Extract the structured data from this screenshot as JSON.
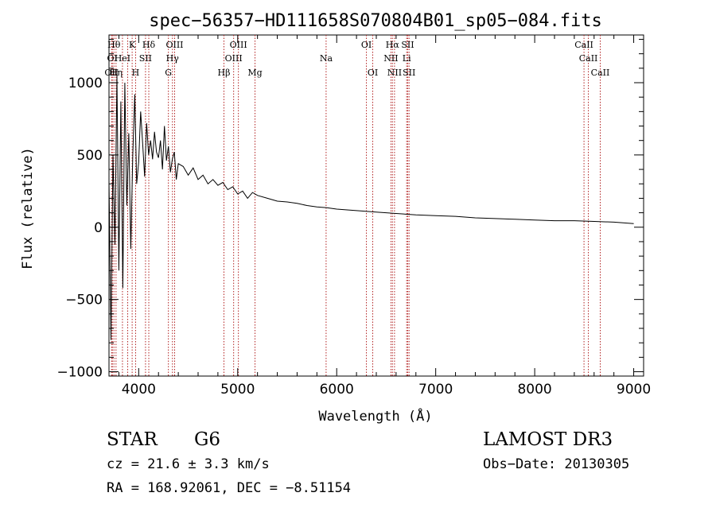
{
  "chart_data": {
    "type": "line",
    "title": "spec−56357−HD111658S070804B01_sp05−084.fits",
    "xlabel": "Wavelength (Å)",
    "ylabel": "Flux (relative)",
    "xlim": [
      3700,
      9100
    ],
    "ylim": [
      -1030,
      1330
    ],
    "xticks": [
      4000,
      5000,
      6000,
      7000,
      8000,
      9000
    ],
    "xtick_labels": [
      "4000",
      "5000",
      "6000",
      "7000",
      "8000",
      "9000"
    ],
    "yticks": [
      -1000,
      -500,
      0,
      500,
      1000
    ],
    "ytick_labels": [
      "−1000",
      "−500",
      "0",
      "500",
      "1000"
    ],
    "grid": false,
    "series": [
      {
        "name": "flux",
        "x": [
          3700,
          3720,
          3740,
          3760,
          3780,
          3800,
          3820,
          3840,
          3860,
          3880,
          3900,
          3920,
          3940,
          3960,
          3980,
          4000,
          4020,
          4040,
          4060,
          4080,
          4100,
          4120,
          4140,
          4160,
          4180,
          4200,
          4220,
          4240,
          4260,
          4280,
          4300,
          4320,
          4340,
          4360,
          4380,
          4400,
          4450,
          4500,
          4550,
          4600,
          4650,
          4700,
          4750,
          4800,
          4850,
          4900,
          4950,
          5000,
          5050,
          5100,
          5150,
          5200,
          5300,
          5400,
          5500,
          5600,
          5700,
          5800,
          5900,
          6000,
          6200,
          6400,
          6600,
          6800,
          7000,
          7200,
          7400,
          7600,
          7800,
          8000,
          8200,
          8400,
          8600,
          8800,
          9000
        ],
        "y": [
          320,
          -780,
          500,
          -120,
          1050,
          -300,
          870,
          -420,
          1000,
          150,
          650,
          -150,
          500,
          920,
          300,
          450,
          800,
          580,
          350,
          720,
          500,
          600,
          470,
          660,
          520,
          480,
          600,
          400,
          700,
          460,
          560,
          380,
          470,
          520,
          330,
          440,
          420,
          360,
          410,
          330,
          360,
          300,
          330,
          290,
          310,
          260,
          280,
          230,
          250,
          200,
          240,
          220,
          200,
          180,
          175,
          165,
          150,
          140,
          135,
          125,
          115,
          105,
          95,
          85,
          80,
          75,
          65,
          60,
          55,
          50,
          45,
          45,
          40,
          35,
          25
        ]
      }
    ],
    "lines": [
      {
        "wavelength": 3726,
        "label": "OII",
        "row": 3
      },
      {
        "wavelength": 3734,
        "label": "OI",
        "row": 2
      },
      {
        "wavelength": 3750,
        "label": "Hθ",
        "row": 1
      },
      {
        "wavelength": 3771,
        "label": "Hη",
        "row": 3
      },
      {
        "wavelength": 3836,
        "label": "HeI",
        "row": 2
      },
      {
        "wavelength": 3889,
        "label": "",
        "row": 0
      },
      {
        "wavelength": 3934,
        "label": "K",
        "row": 1
      },
      {
        "wavelength": 3969,
        "label": "H",
        "row": 3
      },
      {
        "wavelength": 4069,
        "label": "SII",
        "row": 2
      },
      {
        "wavelength": 4102,
        "label": "Hδ",
        "row": 1
      },
      {
        "wavelength": 4300,
        "label": "G",
        "row": 3
      },
      {
        "wavelength": 4341,
        "label": "Hγ",
        "row": 2
      },
      {
        "wavelength": 4363,
        "label": "OIII",
        "row": 1
      },
      {
        "wavelength": 4861,
        "label": "Hβ",
        "row": 3
      },
      {
        "wavelength": 4959,
        "label": "OIII",
        "row": 2
      },
      {
        "wavelength": 5007,
        "label": "OIII",
        "row": 1
      },
      {
        "wavelength": 5175,
        "label": "Mg",
        "row": 3
      },
      {
        "wavelength": 5893,
        "label": "Na",
        "row": 2
      },
      {
        "wavelength": 6300,
        "label": "OI",
        "row": 1
      },
      {
        "wavelength": 6364,
        "label": "OI",
        "row": 3
      },
      {
        "wavelength": 6548,
        "label": "NII",
        "row": 2
      },
      {
        "wavelength": 6563,
        "label": "Hα",
        "row": 1
      },
      {
        "wavelength": 6584,
        "label": "NII",
        "row": 3
      },
      {
        "wavelength": 6707,
        "label": "Li",
        "row": 2
      },
      {
        "wavelength": 6717,
        "label": "SII",
        "row": 1
      },
      {
        "wavelength": 6731,
        "label": "SII",
        "row": 3
      },
      {
        "wavelength": 8498,
        "label": "CaII",
        "row": 1
      },
      {
        "wavelength": 8542,
        "label": "CaII",
        "row": 2
      },
      {
        "wavelength": 8662,
        "label": "CaII",
        "row": 3
      }
    ]
  },
  "info": {
    "object_class": "STAR",
    "subclass": "G6",
    "survey": "LAMOST DR3",
    "redshift": "cz = 21.6 ± 3.3 km/s",
    "obs_date": "Obs−Date: 20130305",
    "coords": "RA = 168.92061, DEC =  −8.51154"
  },
  "colors": {
    "spectrum": "#000000",
    "line_marker": "#b22222",
    "axis": "#000000"
  }
}
